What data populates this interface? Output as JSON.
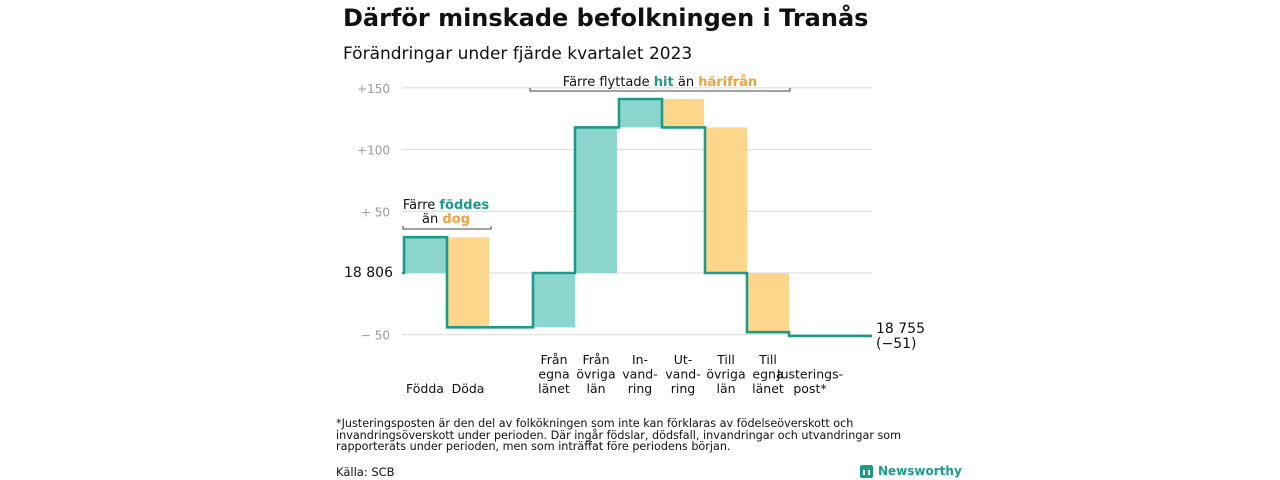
{
  "title": "Därför minskade befolkningen i Tranås",
  "subtitle": "Förändringar under fjärde kvartalet 2023",
  "footnote": "*Justeringsposten är den del av folkökningen som inte kan förklaras av födelseöverskott och invandringsöverskott under perioden. Där ingår födslar, dödsfall, invandringar och utvandringar som rapporterats under perioden, men som inträffat före periodens början.",
  "source": "Källa: SCB",
  "brand": "Newsworthy",
  "chart_data": {
    "type": "waterfall",
    "start_value": 18806,
    "start_label": "18  806",
    "end_label_lines": [
      "18 755",
      "(−51)"
    ],
    "y_ticks": [
      {
        "value": 150,
        "label": "+150"
      },
      {
        "value": 100,
        "label": "+100"
      },
      {
        "value": 50,
        "label": "+  50"
      },
      {
        "value": -50,
        "label": "−  50"
      }
    ],
    "steps": [
      {
        "label_lines": [
          "Födda"
        ],
        "change": 29,
        "kind": "in"
      },
      {
        "label_lines": [
          "Döda"
        ],
        "change": -73,
        "kind": "out"
      },
      {
        "label_lines": [
          "Från",
          "egna",
          "länet"
        ],
        "change": 44,
        "kind": "in"
      },
      {
        "label_lines": [
          "Från",
          "övriga",
          "län"
        ],
        "change": 118,
        "kind": "in"
      },
      {
        "label_lines": [
          "In-",
          "vand-",
          "ring"
        ],
        "change": 23,
        "kind": "in"
      },
      {
        "label_lines": [
          "Ut-",
          "vand-",
          "ring"
        ],
        "change": -23,
        "kind": "out"
      },
      {
        "label_lines": [
          "Till",
          "övriga",
          "län"
        ],
        "change": -118,
        "kind": "out"
      },
      {
        "label_lines": [
          "Till",
          "egna",
          "länet"
        ],
        "change": -48,
        "kind": "out"
      },
      {
        "label_lines": [
          "Justerings-",
          "post*"
        ],
        "change": -3,
        "kind": "out"
      }
    ],
    "annotations": [
      {
        "lines": [
          [
            {
              "text": "Färre ",
              "kind": "plain"
            },
            {
              "text": "föddes",
              "kind": "in"
            }
          ],
          [
            {
              "text": "än ",
              "kind": "plain"
            },
            {
              "text": "dog",
              "kind": "out"
            }
          ]
        ]
      },
      {
        "lines": [
          [
            {
              "text": "Färre flyttade ",
              "kind": "plain"
            },
            {
              "text": "hit",
              "kind": "in"
            },
            {
              "text": "  än ",
              "kind": "plain"
            },
            {
              "text": "härifrån",
              "kind": "out"
            }
          ]
        ]
      }
    ],
    "colors": {
      "in_fill": "#8dd6cf",
      "out_fill": "#fdd68c",
      "line": "#1c9a8a",
      "in_text": "#1c9a8a",
      "out_text": "#f0a13a",
      "grid": "#d9d9d9",
      "tick": "#9b9b9b"
    }
  }
}
